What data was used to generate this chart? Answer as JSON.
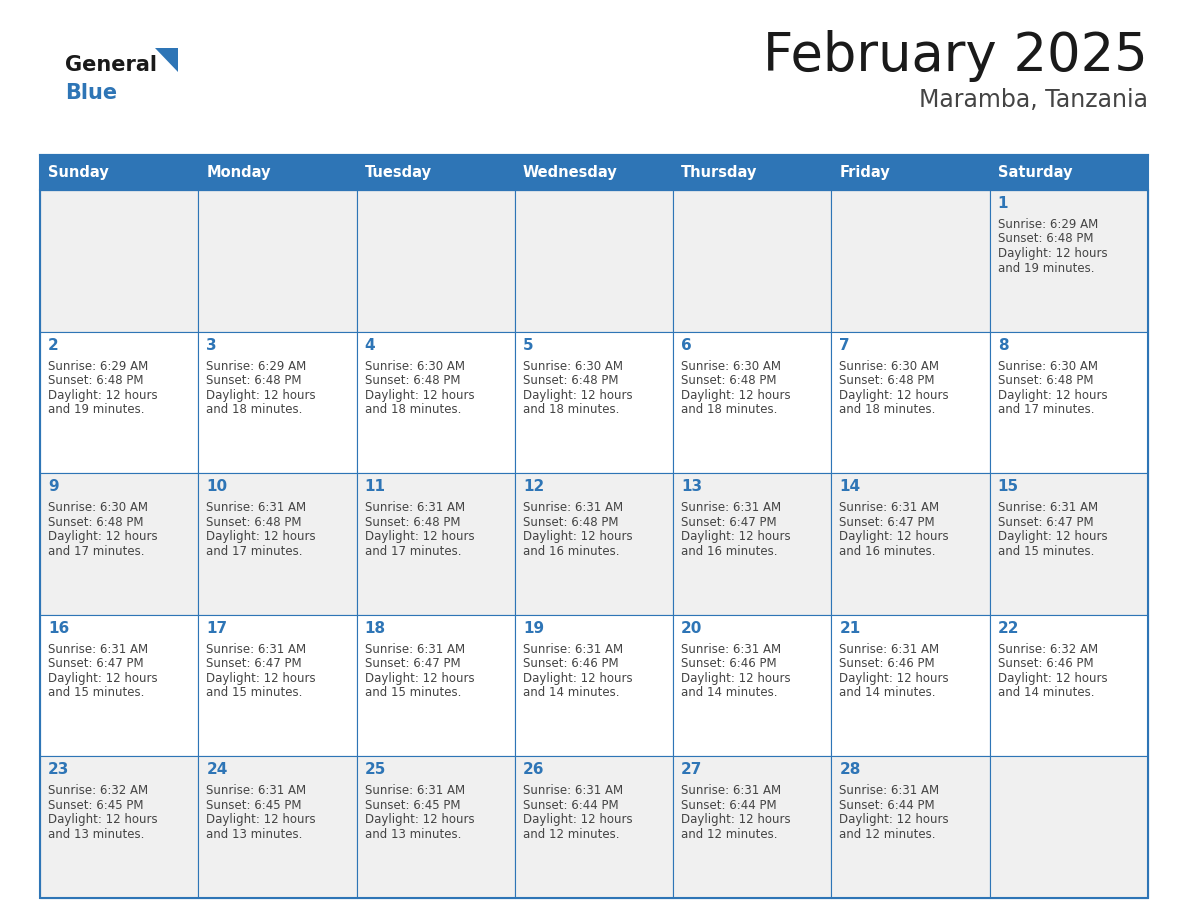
{
  "title": "February 2025",
  "subtitle": "Maramba, Tanzania",
  "days_of_week": [
    "Sunday",
    "Monday",
    "Tuesday",
    "Wednesday",
    "Thursday",
    "Friday",
    "Saturday"
  ],
  "header_bg": "#2E75B6",
  "header_text_color": "#FFFFFF",
  "cell_bg_white": "#FFFFFF",
  "cell_bg_gray": "#F0F0F0",
  "border_color": "#2E75B6",
  "day_number_color": "#2E75B6",
  "cell_text_color": "#444444",
  "title_color": "#1a1a1a",
  "subtitle_color": "#444444",
  "weeks": [
    [
      null,
      null,
      null,
      null,
      null,
      null,
      1
    ],
    [
      2,
      3,
      4,
      5,
      6,
      7,
      8
    ],
    [
      9,
      10,
      11,
      12,
      13,
      14,
      15
    ],
    [
      16,
      17,
      18,
      19,
      20,
      21,
      22
    ],
    [
      23,
      24,
      25,
      26,
      27,
      28,
      null
    ]
  ],
  "row_bg": [
    "#F0F0F0",
    "#FFFFFF",
    "#F0F0F0",
    "#FFFFFF",
    "#F0F0F0"
  ],
  "cell_data": {
    "1": {
      "sunrise": "6:29 AM",
      "sunset": "6:48 PM",
      "daylight_h": "12 hours",
      "daylight_m": "and 19 minutes."
    },
    "2": {
      "sunrise": "6:29 AM",
      "sunset": "6:48 PM",
      "daylight_h": "12 hours",
      "daylight_m": "and 19 minutes."
    },
    "3": {
      "sunrise": "6:29 AM",
      "sunset": "6:48 PM",
      "daylight_h": "12 hours",
      "daylight_m": "and 18 minutes."
    },
    "4": {
      "sunrise": "6:30 AM",
      "sunset": "6:48 PM",
      "daylight_h": "12 hours",
      "daylight_m": "and 18 minutes."
    },
    "5": {
      "sunrise": "6:30 AM",
      "sunset": "6:48 PM",
      "daylight_h": "12 hours",
      "daylight_m": "and 18 minutes."
    },
    "6": {
      "sunrise": "6:30 AM",
      "sunset": "6:48 PM",
      "daylight_h": "12 hours",
      "daylight_m": "and 18 minutes."
    },
    "7": {
      "sunrise": "6:30 AM",
      "sunset": "6:48 PM",
      "daylight_h": "12 hours",
      "daylight_m": "and 18 minutes."
    },
    "8": {
      "sunrise": "6:30 AM",
      "sunset": "6:48 PM",
      "daylight_h": "12 hours",
      "daylight_m": "and 17 minutes."
    },
    "9": {
      "sunrise": "6:30 AM",
      "sunset": "6:48 PM",
      "daylight_h": "12 hours",
      "daylight_m": "and 17 minutes."
    },
    "10": {
      "sunrise": "6:31 AM",
      "sunset": "6:48 PM",
      "daylight_h": "12 hours",
      "daylight_m": "and 17 minutes."
    },
    "11": {
      "sunrise": "6:31 AM",
      "sunset": "6:48 PM",
      "daylight_h": "12 hours",
      "daylight_m": "and 17 minutes."
    },
    "12": {
      "sunrise": "6:31 AM",
      "sunset": "6:48 PM",
      "daylight_h": "12 hours",
      "daylight_m": "and 16 minutes."
    },
    "13": {
      "sunrise": "6:31 AM",
      "sunset": "6:47 PM",
      "daylight_h": "12 hours",
      "daylight_m": "and 16 minutes."
    },
    "14": {
      "sunrise": "6:31 AM",
      "sunset": "6:47 PM",
      "daylight_h": "12 hours",
      "daylight_m": "and 16 minutes."
    },
    "15": {
      "sunrise": "6:31 AM",
      "sunset": "6:47 PM",
      "daylight_h": "12 hours",
      "daylight_m": "and 15 minutes."
    },
    "16": {
      "sunrise": "6:31 AM",
      "sunset": "6:47 PM",
      "daylight_h": "12 hours",
      "daylight_m": "and 15 minutes."
    },
    "17": {
      "sunrise": "6:31 AM",
      "sunset": "6:47 PM",
      "daylight_h": "12 hours",
      "daylight_m": "and 15 minutes."
    },
    "18": {
      "sunrise": "6:31 AM",
      "sunset": "6:47 PM",
      "daylight_h": "12 hours",
      "daylight_m": "and 15 minutes."
    },
    "19": {
      "sunrise": "6:31 AM",
      "sunset": "6:46 PM",
      "daylight_h": "12 hours",
      "daylight_m": "and 14 minutes."
    },
    "20": {
      "sunrise": "6:31 AM",
      "sunset": "6:46 PM",
      "daylight_h": "12 hours",
      "daylight_m": "and 14 minutes."
    },
    "21": {
      "sunrise": "6:31 AM",
      "sunset": "6:46 PM",
      "daylight_h": "12 hours",
      "daylight_m": "and 14 minutes."
    },
    "22": {
      "sunrise": "6:32 AM",
      "sunset": "6:46 PM",
      "daylight_h": "12 hours",
      "daylight_m": "and 14 minutes."
    },
    "23": {
      "sunrise": "6:32 AM",
      "sunset": "6:45 PM",
      "daylight_h": "12 hours",
      "daylight_m": "and 13 minutes."
    },
    "24": {
      "sunrise": "6:31 AM",
      "sunset": "6:45 PM",
      "daylight_h": "12 hours",
      "daylight_m": "and 13 minutes."
    },
    "25": {
      "sunrise": "6:31 AM",
      "sunset": "6:45 PM",
      "daylight_h": "12 hours",
      "daylight_m": "and 13 minutes."
    },
    "26": {
      "sunrise": "6:31 AM",
      "sunset": "6:44 PM",
      "daylight_h": "12 hours",
      "daylight_m": "and 12 minutes."
    },
    "27": {
      "sunrise": "6:31 AM",
      "sunset": "6:44 PM",
      "daylight_h": "12 hours",
      "daylight_m": "and 12 minutes."
    },
    "28": {
      "sunrise": "6:31 AM",
      "sunset": "6:44 PM",
      "daylight_h": "12 hours",
      "daylight_m": "and 12 minutes."
    }
  }
}
